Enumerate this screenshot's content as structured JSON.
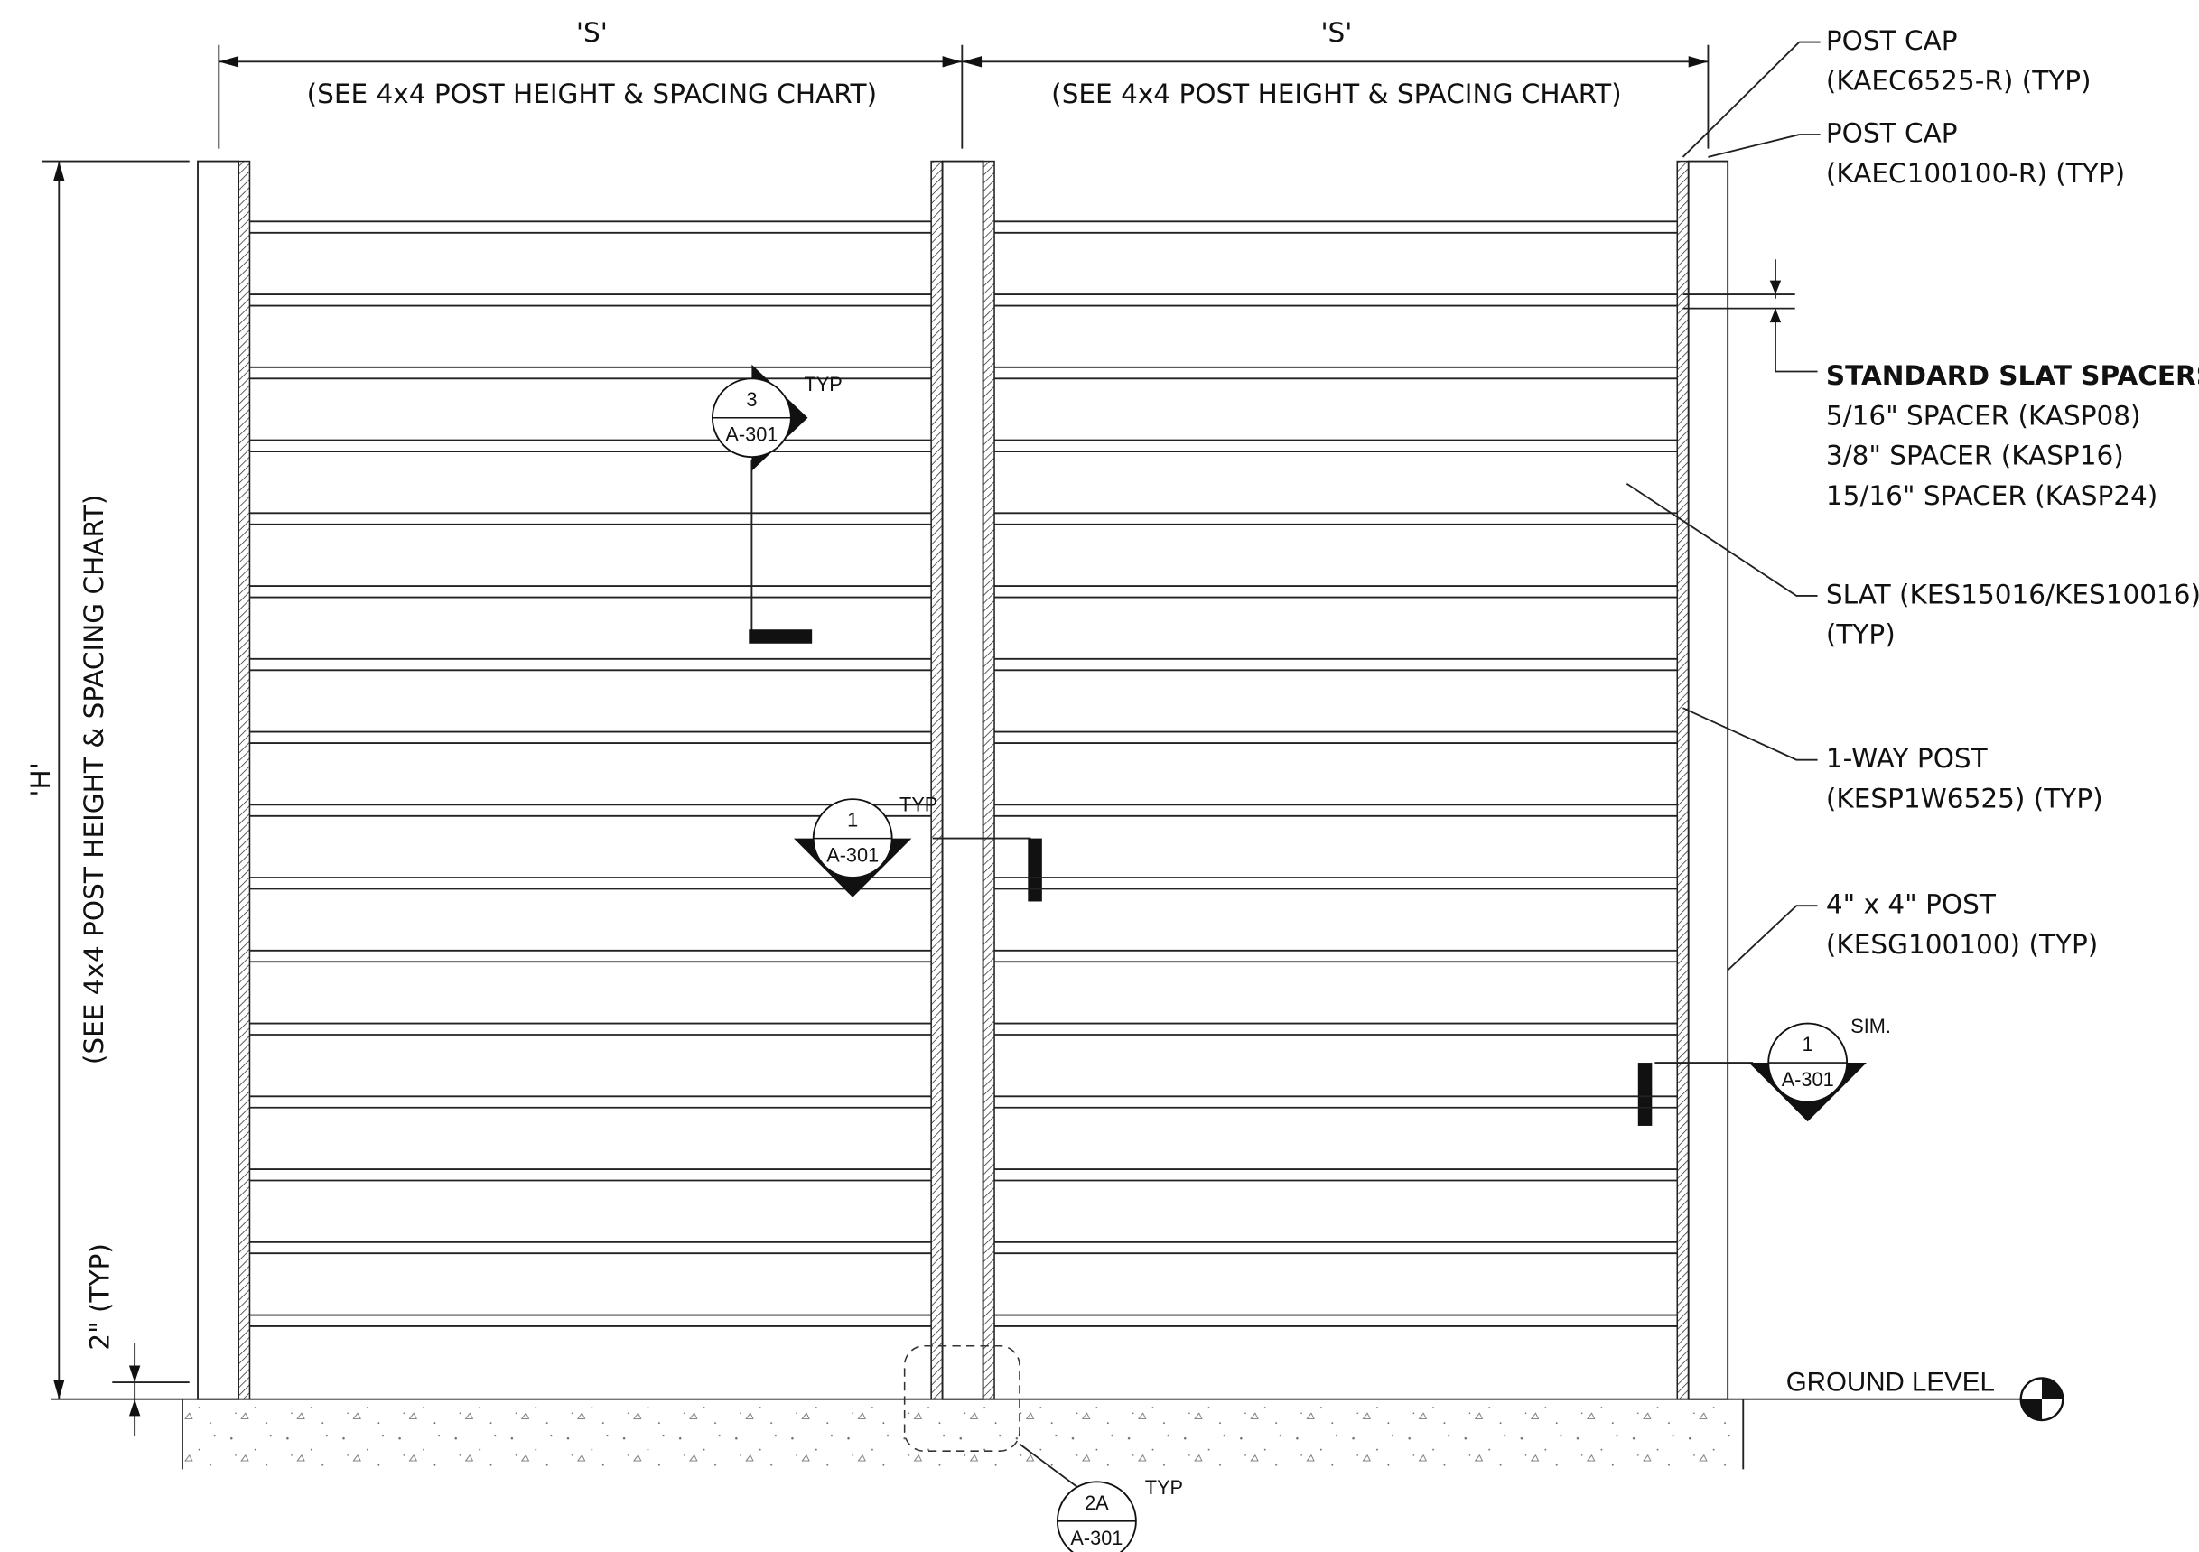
{
  "dimensions": {
    "spacing": [
      {
        "label": "'S'",
        "note": "(SEE 4x4 POST HEIGHT & SPACING CHART)"
      },
      {
        "label": "'S'",
        "note": "(SEE 4x4 POST HEIGHT & SPACING CHART)"
      }
    ],
    "height": {
      "label": "'H'",
      "note": "(SEE 4x4 POST HEIGHT & SPACING CHART)"
    },
    "clearance": "2\" (TYP)"
  },
  "callouts": [
    {
      "lines": [
        "POST CAP",
        "(KAEC6525-R) (TYP)"
      ]
    },
    {
      "lines": [
        "POST CAP",
        "(KAEC100100-R) (TYP)"
      ]
    },
    {
      "lines": [
        "STANDARD SLAT SPACERS:",
        "5/16\" SPACER (KASP08)",
        "3/8\" SPACER (KASP16)",
        "15/16\" SPACER (KASP24)"
      ]
    },
    {
      "lines": [
        "SLAT (KES15016/KES10016)",
        "(TYP)"
      ]
    },
    {
      "lines": [
        "1-WAY POST",
        "(KESP1W6525) (TYP)"
      ]
    },
    {
      "lines": [
        "4\" x 4\" POST",
        "(KESG100100) (TYP)"
      ]
    }
  ],
  "section_markers": [
    {
      "number": "3",
      "sheet": "A-301",
      "note": "TYP"
    },
    {
      "number": "1",
      "sheet": "A-301",
      "note": "TYP"
    },
    {
      "number": "1",
      "sheet": "A-301",
      "note": "SIM."
    },
    {
      "number": "2A",
      "sheet": "A-301",
      "note": "TYP"
    }
  ],
  "ground": "GROUND LEVEL"
}
